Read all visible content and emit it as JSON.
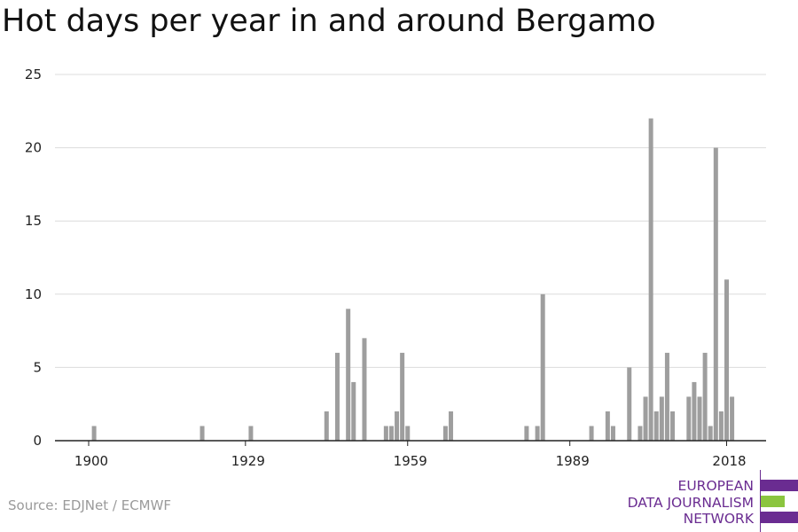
{
  "title": "Hot days per year in and around Bergamo",
  "source": "Source: EDJNet / ECMWF",
  "logo": {
    "lines": [
      "EUROPEAN",
      "DATA JOURNALISM",
      "NETWORK"
    ],
    "colors": {
      "primary": "#6a2c91",
      "accent": "#8bc53f"
    }
  },
  "chart_data": {
    "type": "bar",
    "title": "Hot days per year in and around Bergamo",
    "xlabel": "",
    "ylabel": "",
    "xlim": [
      1900,
      2018
    ],
    "ylim": [
      0,
      25
    ],
    "yticks": [
      0,
      5,
      10,
      15,
      20,
      25
    ],
    "xticks": [
      1900,
      1929,
      1959,
      1989,
      2018
    ],
    "grid": true,
    "bar_color": "#9e9e9e",
    "series": [
      {
        "x": [
          1901,
          1921,
          1930,
          1944,
          1946,
          1948,
          1949,
          1951,
          1955,
          1956,
          1957,
          1958,
          1959,
          1966,
          1967,
          1981,
          1983,
          1984,
          1993,
          1996,
          1997,
          2000,
          2002,
          2003,
          2004,
          2005,
          2006,
          2007,
          2008,
          2011,
          2012,
          2013,
          2014,
          2015,
          2016,
          2017,
          2018,
          2019,
          2020
        ],
        "values": [
          1,
          1,
          1,
          2,
          6,
          9,
          4,
          7,
          1,
          1,
          2,
          6,
          1,
          1,
          2,
          1,
          1,
          10,
          1,
          2,
          1,
          5,
          1,
          3,
          22,
          2,
          3,
          6,
          2,
          3,
          4,
          3,
          6,
          1,
          20,
          2,
          11,
          3,
          0
        ]
      }
    ]
  }
}
